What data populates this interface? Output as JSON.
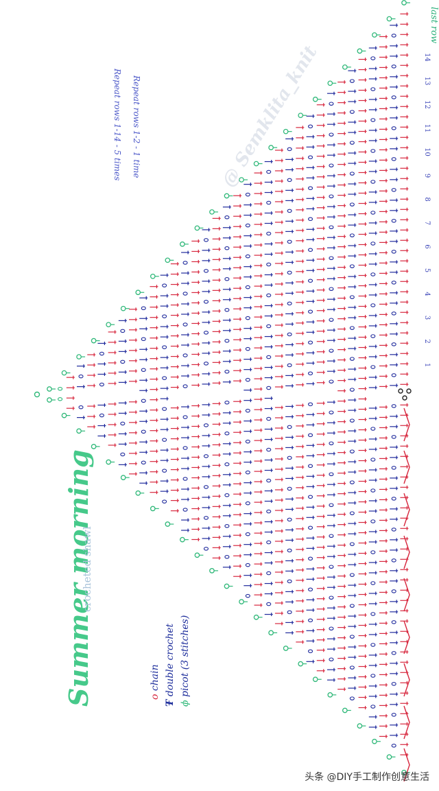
{
  "title": "Summer morning",
  "subtitle": "crocheted shawl",
  "legend": [
    {
      "symbol": "chain",
      "label": "chain"
    },
    {
      "symbol": "double-crochet",
      "label": "double crochet"
    },
    {
      "symbol": "picot",
      "label": "picot (3 stitches)"
    }
  ],
  "repeat_notes": [
    "Repeat rows 1-14 - 5 times",
    "Repeat rows 1-2 - 1 time"
  ],
  "watermark": "@ Semklita_knit",
  "row_labels": [
    "1",
    "2",
    "3",
    "4",
    "5",
    "6",
    "7",
    "8",
    "9",
    "10",
    "11",
    "12",
    "13",
    "14"
  ],
  "last_row_label": "last row",
  "caption": "头条 @DIY手工制作创意生活",
  "colors": {
    "background": "#ffffff",
    "green": "#2fb879",
    "blue": "#1f2a9c",
    "red": "#d7263d",
    "grey": "#bfc8d4"
  },
  "row_color_pattern": [
    "blue",
    "red",
    "blue",
    "red",
    "blue",
    "red",
    "blue",
    "red",
    "blue",
    "red",
    "blue",
    "red",
    "blue",
    "red"
  ],
  "outer_row_color": "green",
  "icons": [
    "chain-symbol-icon",
    "double-crochet-symbol-icon",
    "picot-symbol-icon"
  ]
}
